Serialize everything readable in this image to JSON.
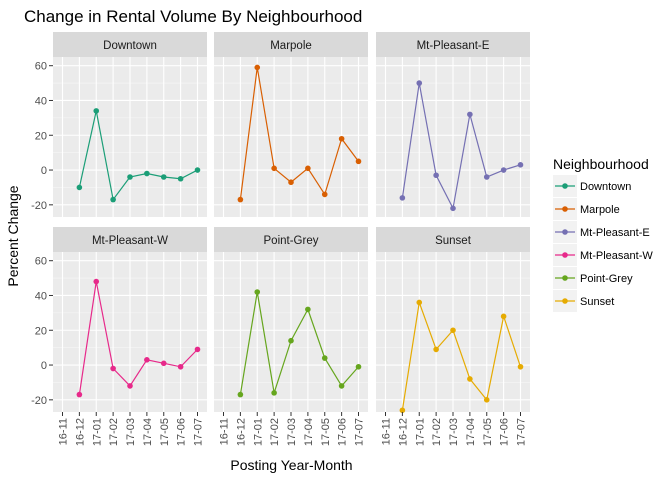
{
  "chart_data": {
    "type": "line",
    "title": "Change in Rental Volume By Neighbourhood",
    "xlabel": "Posting Year-Month",
    "ylabel": "Percent Change",
    "x_ticks": [
      "16-11",
      "16-12",
      "17-01",
      "17-02",
      "17-03",
      "17-04",
      "17-05",
      "17-06",
      "17-07"
    ],
    "y_ticks": [
      -20,
      0,
      20,
      40,
      60
    ],
    "ylim": [
      -27,
      65
    ],
    "grid": true,
    "legend": {
      "title": "Neighbourhood",
      "position": "right"
    },
    "series": [
      {
        "name": "Downtown",
        "color": "#1b9e77",
        "values": [
          null,
          -10,
          34,
          -17,
          -4,
          -2,
          -4,
          -5,
          0
        ]
      },
      {
        "name": "Marpole",
        "color": "#d95f02",
        "values": [
          null,
          -17,
          59,
          1,
          -7,
          1,
          -14,
          18,
          5
        ]
      },
      {
        "name": "Mt-Pleasant-E",
        "color": "#7570b3",
        "values": [
          null,
          -16,
          50,
          -3,
          -22,
          32,
          -4,
          0,
          3
        ]
      },
      {
        "name": "Mt-Pleasant-W",
        "color": "#e7298a",
        "values": [
          null,
          -17,
          48,
          -2,
          -12,
          3,
          1,
          -1,
          9
        ]
      },
      {
        "name": "Point-Grey",
        "color": "#66a61e",
        "values": [
          null,
          -17,
          42,
          -16,
          14,
          32,
          4,
          -12,
          -1
        ]
      },
      {
        "name": "Sunset",
        "color": "#e6ab02",
        "values": [
          null,
          -26,
          36,
          9,
          20,
          -8,
          -20,
          28,
          -1
        ]
      }
    ]
  }
}
